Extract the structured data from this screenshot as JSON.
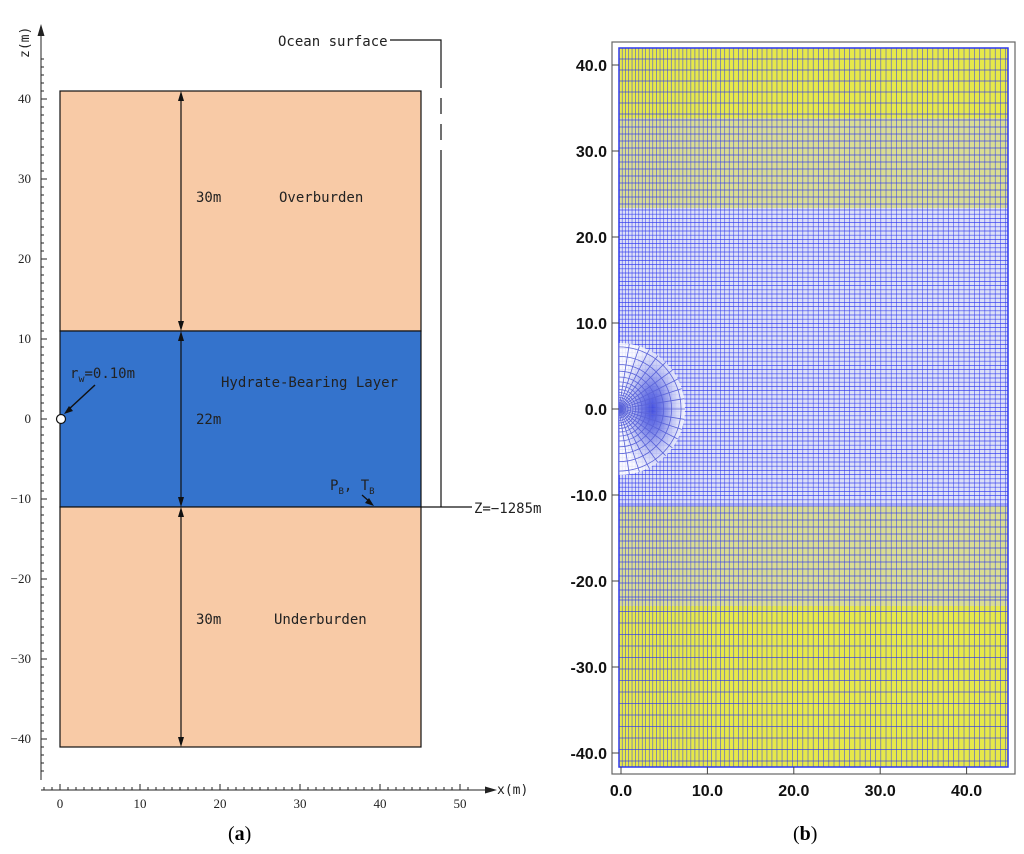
{
  "panel_a": {
    "caption_open": "(",
    "caption_letter": "a",
    "caption_close": ")",
    "z_axis_label": "z(m)",
    "x_axis_label": "x(m)",
    "z_ticks": [
      "40",
      "30",
      "20",
      "10",
      "0",
      "−10",
      "−20",
      "−30",
      "−40"
    ],
    "z_tick_values": [
      40,
      30,
      20,
      10,
      0,
      -10,
      -20,
      -30,
      -40
    ],
    "x_ticks": [
      "0",
      "10",
      "20",
      "30",
      "40",
      "50"
    ],
    "x_tick_values": [
      0,
      10,
      20,
      30,
      40,
      50
    ],
    "z_range": [
      -45,
      48
    ],
    "x_range": [
      -2.5,
      52
    ],
    "layers": [
      {
        "name": "Overburden",
        "thickness_label": "30m",
        "z_top": 41,
        "z_bottom": 11,
        "color": "#f8caa6"
      },
      {
        "name": "Hydrate-Bearing Layer",
        "thickness_label": "22m",
        "z_top": 11,
        "z_bottom": -11,
        "color": "#3473cc"
      },
      {
        "name": "Underburden",
        "thickness_label": "30m",
        "z_top": -11,
        "z_bottom": -41,
        "color": "#f8caa6"
      }
    ],
    "domain_width_m": 45,
    "ocean_surface_label": "Ocean surface",
    "depth_label": "Z=−1285m",
    "well_radius_r": "r",
    "well_radius_sub": "w",
    "well_radius_value": "=0.10m",
    "boundary_p": "P",
    "boundary_p_sub": "B",
    "boundary_sep": ", ",
    "boundary_t": "T",
    "boundary_t_sub": "B"
  },
  "panel_b": {
    "caption_open": "(",
    "caption_letter": "b",
    "caption_close": ")",
    "y_ticks": [
      "40.0",
      "30.0",
      "20.0",
      "10.0",
      "0.0",
      "-10.0",
      "-20.0",
      "-30.0",
      "-40.0"
    ],
    "y_tick_values": [
      40,
      30,
      20,
      10,
      0,
      -10,
      -20,
      -30,
      -40
    ],
    "x_ticks": [
      "0.0",
      "10.0",
      "20.0",
      "30.0",
      "40.0"
    ],
    "x_tick_values": [
      0,
      10,
      20,
      30,
      40
    ],
    "mesh_line_color": "#2f39ee",
    "mesh_fill_yellow": "#e6e84a",
    "mesh_fill_blue": "#d8dcf6",
    "well_refinement_radius_m": 7.5
  }
}
